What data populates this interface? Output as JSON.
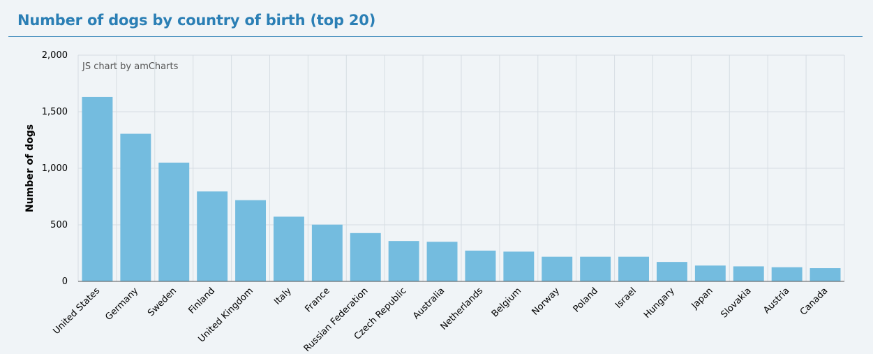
{
  "page": {
    "title": "Number of dogs by country of birth (top 20)"
  },
  "chart_data": {
    "type": "bar",
    "credit": "JS chart by amCharts",
    "ylabel": "Number of dogs",
    "xlabel": "",
    "ylim": [
      0,
      2000
    ],
    "yticks": [
      0,
      500,
      1000,
      1500,
      2000
    ],
    "ytick_labels": [
      "0",
      "500",
      "1,000",
      "1,500",
      "2,000"
    ],
    "grid": true,
    "bar_color": "#74bcdf",
    "categories": [
      "United States",
      "Germany",
      "Sweden",
      "Finland",
      "United Kingdom",
      "Italy",
      "France",
      "Russian Federation",
      "Czech Republic",
      "Australia",
      "Netherlands",
      "Belgium",
      "Norway",
      "Poland",
      "Israel",
      "Hungary",
      "Japan",
      "Slovakia",
      "Austria",
      "Canada"
    ],
    "values": [
      1630,
      1305,
      1050,
      795,
      718,
      572,
      502,
      427,
      357,
      350,
      272,
      263,
      218,
      218,
      218,
      172,
      140,
      133,
      125,
      117
    ]
  }
}
